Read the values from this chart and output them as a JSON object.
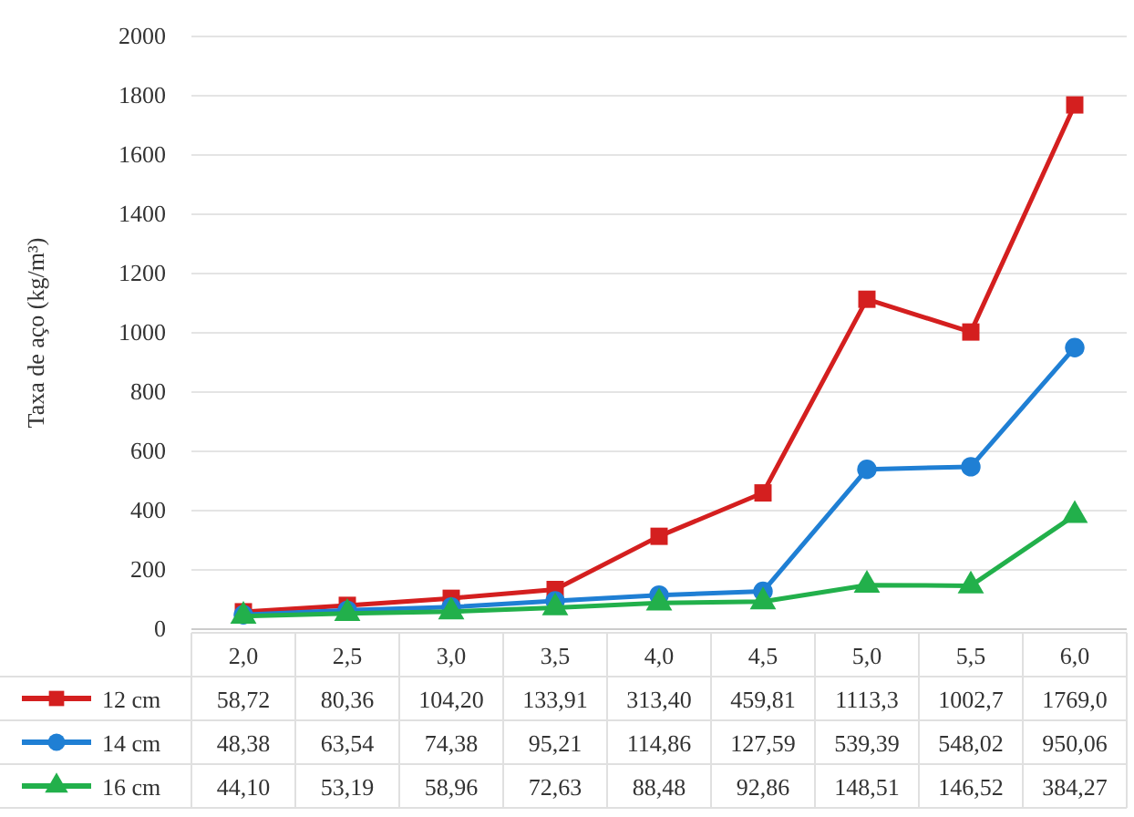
{
  "chart_data": {
    "type": "line",
    "ylabel": "Taxa de aço (kg/m³)",
    "categories": [
      "2,0",
      "2,5",
      "3,0",
      "3,5",
      "4,0",
      "4,5",
      "5,0",
      "5,5",
      "6,0"
    ],
    "ylim": [
      0,
      2000
    ],
    "yticks": [
      0,
      200,
      400,
      600,
      800,
      1000,
      1200,
      1400,
      1600,
      1800,
      2000
    ],
    "grid": "y",
    "legend": "bottom",
    "series": [
      {
        "name": "12 cm",
        "color": "#d41f1f",
        "marker": "square",
        "values": [
          58.72,
          80.36,
          104.2,
          133.91,
          313.4,
          459.81,
          1113.3,
          1002.7,
          1769.0
        ],
        "value_labels": [
          "58,72",
          "80,36",
          "104,20",
          "133,91",
          "313,40",
          "459,81",
          "1113,3",
          "1002,7",
          "1769,0"
        ]
      },
      {
        "name": "14 cm",
        "color": "#1f7fd4",
        "marker": "circle",
        "values": [
          48.38,
          63.54,
          74.38,
          95.21,
          114.86,
          127.59,
          539.39,
          548.02,
          950.06
        ],
        "value_labels": [
          "48,38",
          "63,54",
          "74,38",
          "95,21",
          "114,86",
          "127,59",
          "539,39",
          "548,02",
          "950,06"
        ]
      },
      {
        "name": "16 cm",
        "color": "#22b04b",
        "marker": "triangle",
        "values": [
          44.1,
          53.19,
          58.96,
          72.63,
          88.48,
          92.86,
          148.51,
          146.52,
          384.27
        ],
        "value_labels": [
          "44,10",
          "53,19",
          "58,96",
          "72,63",
          "88,48",
          "92,86",
          "148,51",
          "146,52",
          "384,27"
        ]
      }
    ]
  }
}
